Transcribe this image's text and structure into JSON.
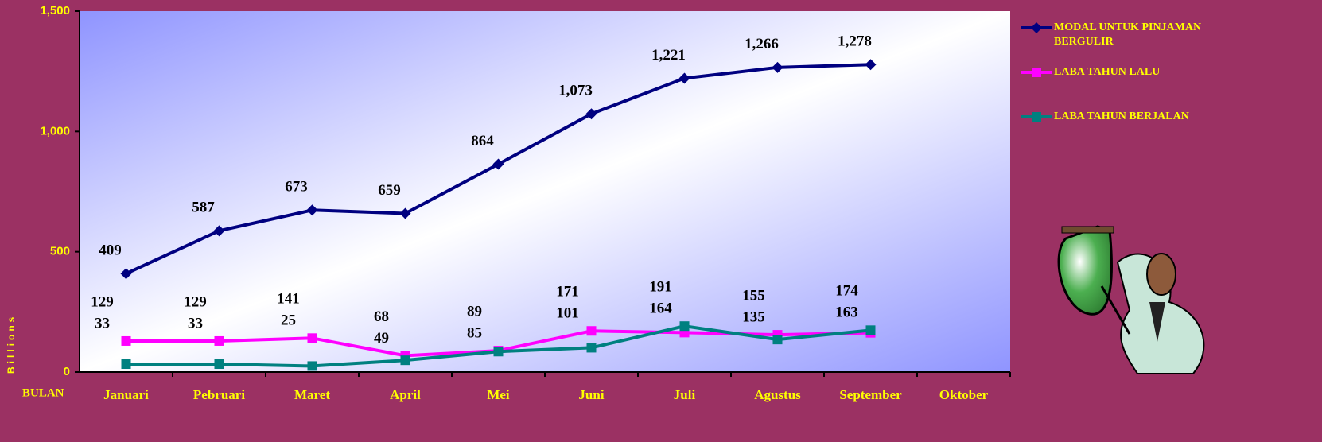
{
  "chart_data": {
    "type": "line",
    "y_unit": "Billions",
    "x_label": "BULAN",
    "categories": [
      "Januari",
      "Pebruari",
      "Maret",
      "April",
      "Mei",
      "Juni",
      "Juli",
      "Agustus",
      "September",
      "Oktober"
    ],
    "series": [
      {
        "name": "MODAL UNTUK PINJAMAN BERGULIR",
        "color": "#000080",
        "marker": "diamond",
        "values": [
          409,
          587,
          673,
          659,
          864,
          1073,
          1221,
          1266,
          1278,
          null
        ],
        "value_labels": [
          "409",
          "587",
          "673",
          "659",
          "864",
          "1,073",
          "1,221",
          "1,266",
          "1,278",
          null
        ]
      },
      {
        "name": "LABA TAHUN LALU",
        "color": "#ff00ff",
        "marker": "square",
        "values": [
          129,
          129,
          141,
          68,
          89,
          171,
          164,
          155,
          163,
          null
        ]
      },
      {
        "name": "LABA TAHUN BERJALAN",
        "color": "#008080",
        "marker": "square",
        "values": [
          33,
          33,
          25,
          49,
          85,
          101,
          191,
          135,
          174,
          null
        ]
      }
    ],
    "ylim": [
      0,
      1500
    ],
    "yticks": [
      0,
      500,
      {
        "value": 1000,
        "label": "1,000"
      },
      {
        "value": 1500,
        "label": "1,500"
      }
    ]
  }
}
